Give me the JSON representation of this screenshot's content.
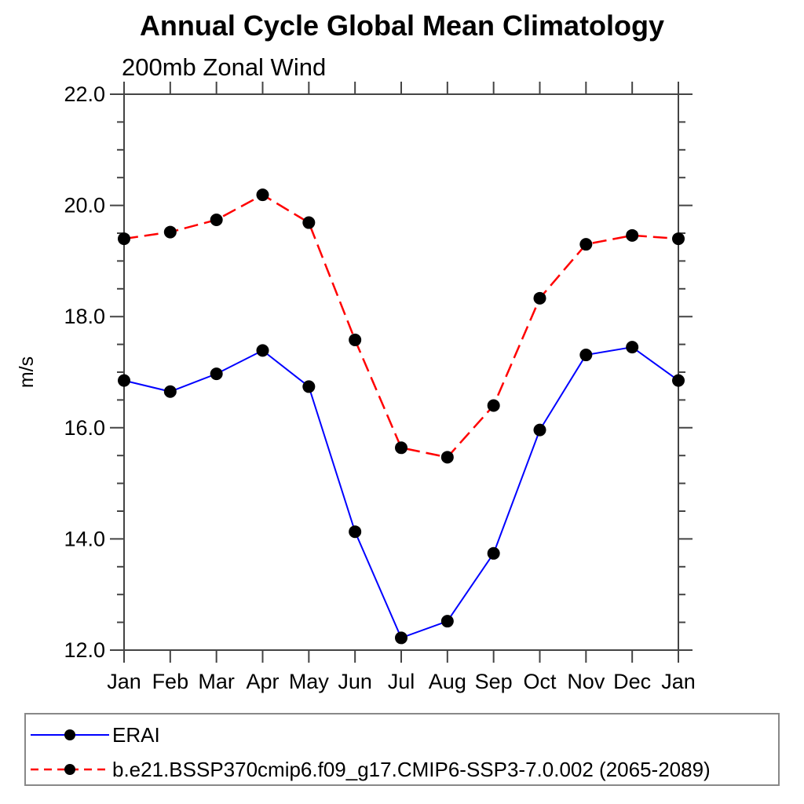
{
  "chart_data": {
    "type": "line",
    "title": "Annual Cycle Global Mean Climatology",
    "subtitle": "200mb Zonal Wind",
    "xlabel": "",
    "ylabel": "m/s",
    "categories": [
      "Jan",
      "Feb",
      "Mar",
      "Apr",
      "May",
      "Jun",
      "Jul",
      "Aug",
      "Sep",
      "Oct",
      "Nov",
      "Dec",
      "Jan"
    ],
    "series": [
      {
        "name": "ERAI",
        "color": "#0000ff",
        "line_style": "solid",
        "marker": "filled-circle",
        "marker_color": "#000000",
        "values": [
          16.85,
          16.65,
          16.97,
          17.39,
          16.74,
          14.13,
          12.22,
          12.52,
          13.74,
          15.96,
          17.31,
          17.45,
          16.85
        ]
      },
      {
        "name": "b.e21.BSSP370cmip6.f09_g17.CMIP6-SSP3-7.0.002 (2065-2089)",
        "color": "#ff0000",
        "line_style": "dashed",
        "marker": "filled-circle",
        "marker_color": "#000000",
        "values": [
          19.4,
          19.52,
          19.74,
          20.19,
          19.69,
          17.58,
          15.64,
          15.47,
          16.4,
          18.33,
          19.3,
          19.46,
          19.4
        ]
      }
    ],
    "ylim": [
      12.0,
      22.0
    ],
    "ytick_major_step": 2.0,
    "ytick_minor_step": 0.5,
    "ytick_labels": [
      "12.0",
      "14.0",
      "16.0",
      "18.0",
      "20.0",
      "22.0"
    ],
    "grid": false,
    "legend_position": "bottom-left-box",
    "axis_color": "#444444",
    "tick_label_color": "#000000"
  }
}
